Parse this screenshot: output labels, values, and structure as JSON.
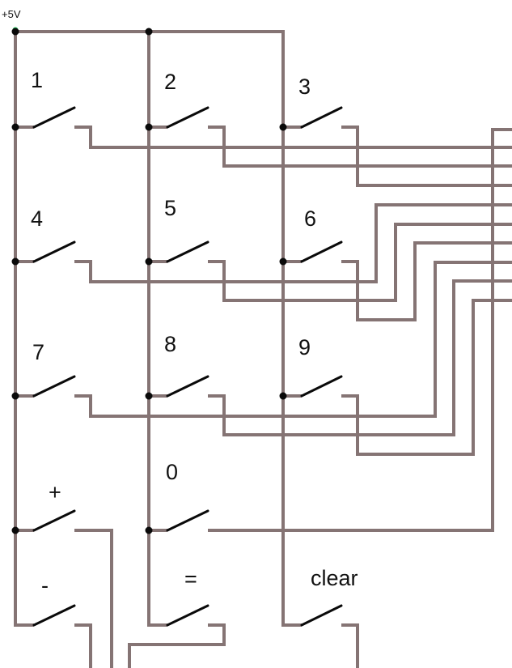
{
  "supply": {
    "label": "+5V",
    "marker_color": "#22c55e"
  },
  "colors": {
    "wire": "#857474",
    "switch": "#0a0a0a",
    "background": "#ffffff"
  },
  "keys": [
    "1",
    "2",
    "3",
    "4",
    "5",
    "6",
    "7",
    "8",
    "9",
    "+",
    "0",
    "-",
    "=",
    "clear"
  ]
}
